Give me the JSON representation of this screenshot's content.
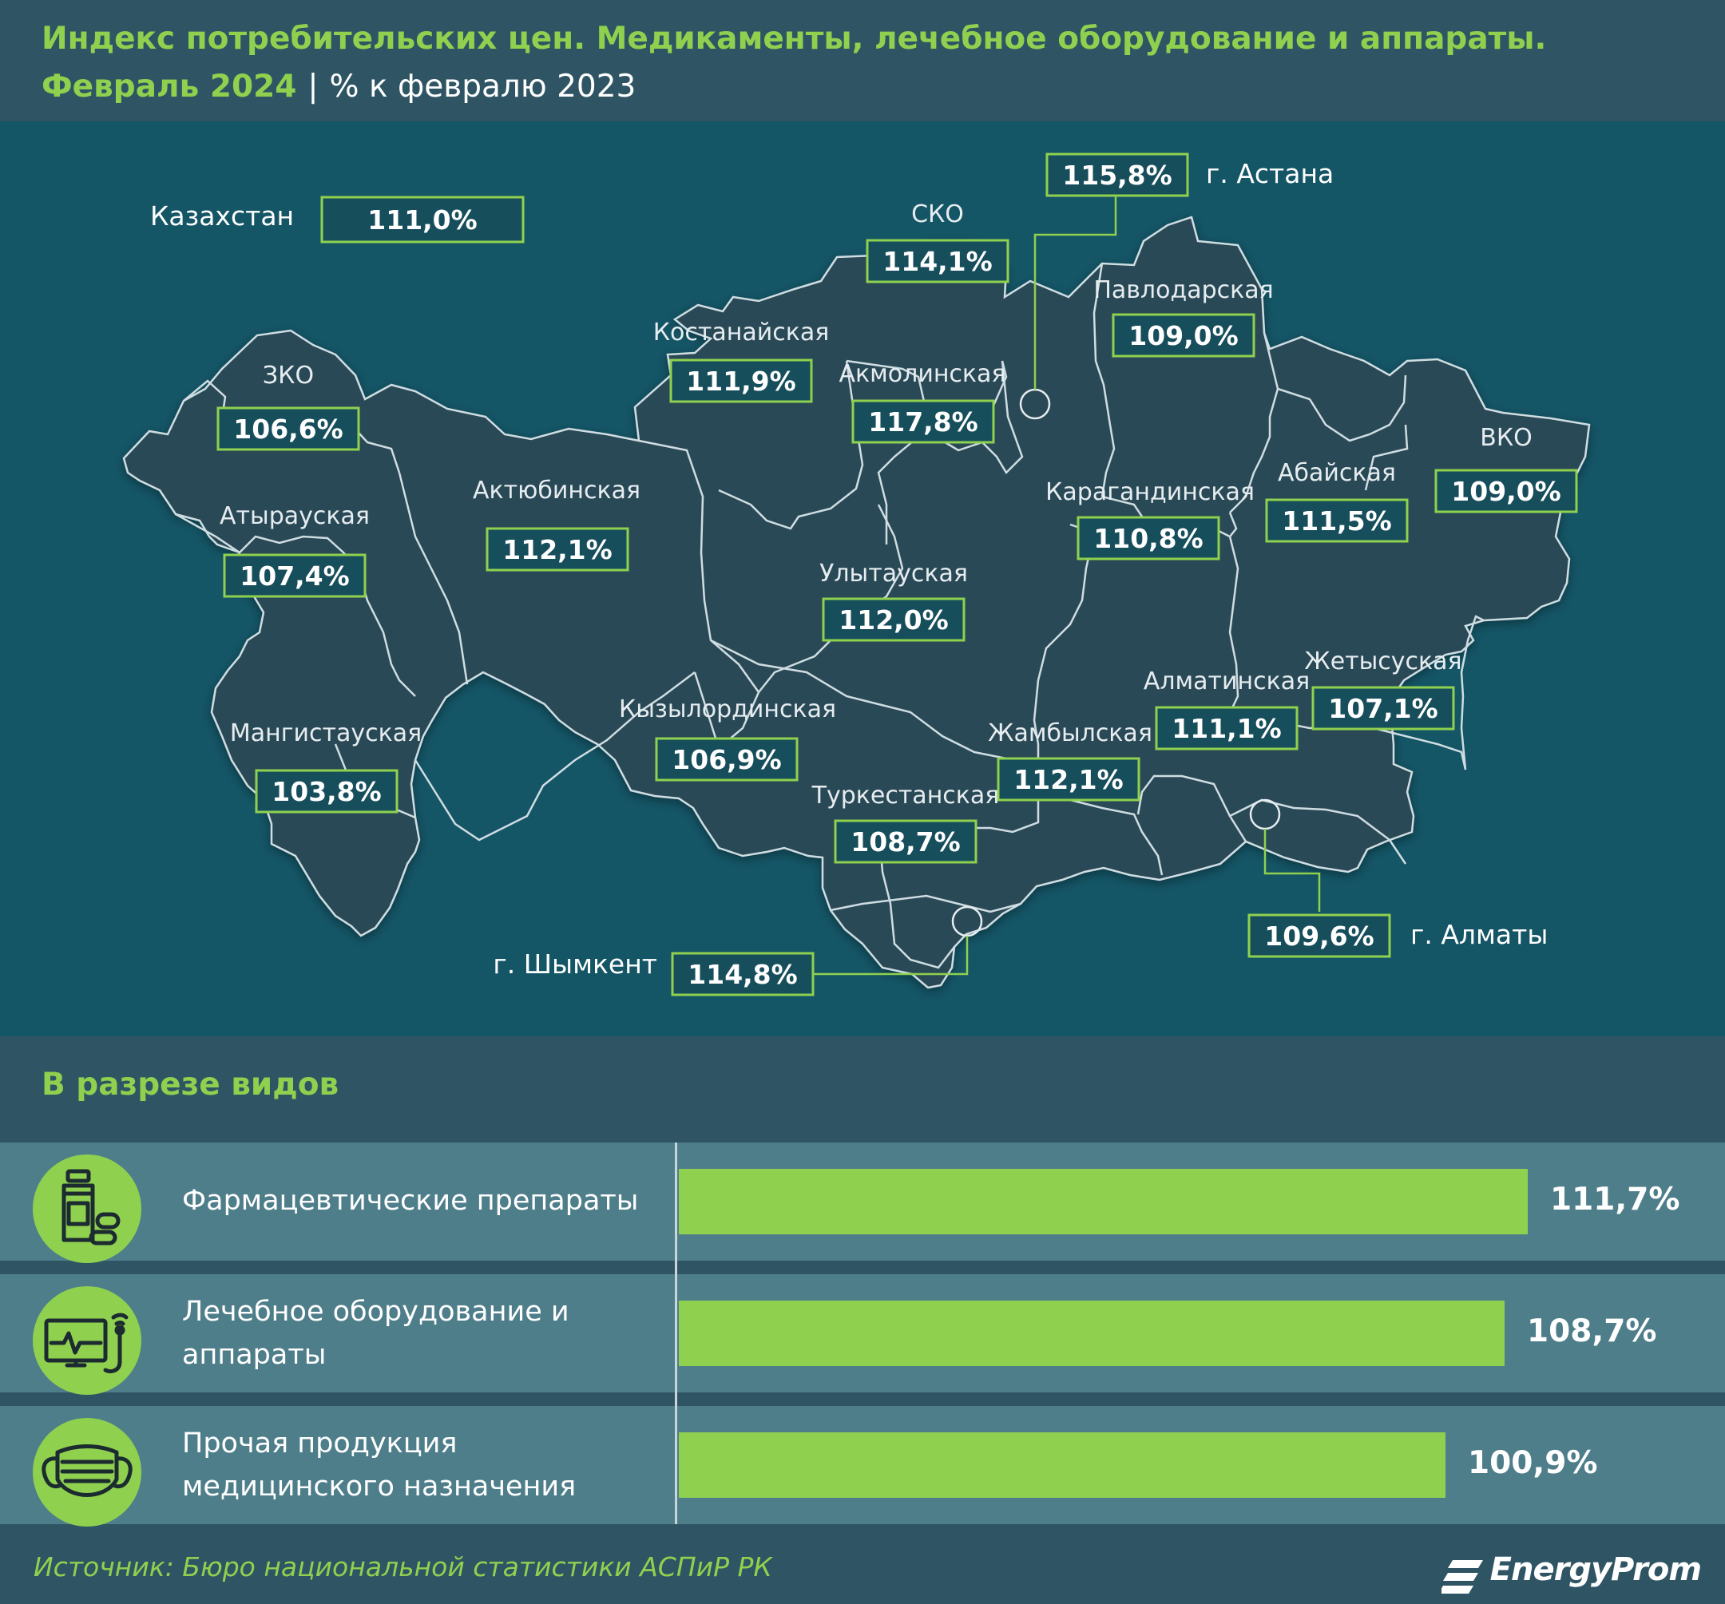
{
  "header": {
    "title": "Индекс потребительских цен. Медикаменты, лечебное оборудование и аппараты.",
    "period": "Февраль 2024",
    "separator": "|",
    "unit": "% к февралю 2023"
  },
  "map": {
    "national": {
      "label": "Казахстан",
      "value": "111,0%"
    },
    "regions": [
      {
        "name": "ЗКО",
        "value": "106,6%"
      },
      {
        "name": "Атырауская",
        "value": "107,4%"
      },
      {
        "name": "Мангистауская",
        "value": "103,8%"
      },
      {
        "name": "Актюбинская",
        "value": "112,1%"
      },
      {
        "name": "Костанайская",
        "value": "111,9%"
      },
      {
        "name": "СКО",
        "value": "114,1%"
      },
      {
        "name": "Акмолинская",
        "value": "117,8%"
      },
      {
        "name": "Павлодарская",
        "value": "109,0%"
      },
      {
        "name": "Абайская",
        "value": "111,5%"
      },
      {
        "name": "ВКО",
        "value": "109,0%"
      },
      {
        "name": "Карагандинская",
        "value": "110,8%"
      },
      {
        "name": "Улытауская",
        "value": "112,0%"
      },
      {
        "name": "Кызылординская",
        "value": "106,9%"
      },
      {
        "name": "Туркестанская",
        "value": "108,7%"
      },
      {
        "name": "Жамбылская",
        "value": "112,1%"
      },
      {
        "name": "Алматинская",
        "value": "111,1%"
      },
      {
        "name": "Жетысуская",
        "value": "107,1%"
      }
    ],
    "cities": [
      {
        "name": "г. Астана",
        "value": "115,8%"
      },
      {
        "name": "г. Алматы",
        "value": "109,6%"
      },
      {
        "name": "г. Шымкент",
        "value": "114,8%"
      }
    ]
  },
  "breakdown": {
    "title": "В разрезе видов"
  },
  "chart_data": {
    "type": "bar",
    "orientation": "horizontal",
    "categories": [
      "Фармацевтические препараты",
      "Лечебное оборудование и аппараты",
      "Прочая продукция медицинского назначения"
    ],
    "values": [
      111.7,
      108.7,
      100.9
    ],
    "value_labels": [
      "111,7%",
      "108,7%",
      "100,9%"
    ],
    "icons": [
      "pills-bottle-icon",
      "medical-monitor-icon",
      "face-mask-icon"
    ],
    "title": "В разрезе видов",
    "xlim": [
      0,
      111.7
    ],
    "colors": {
      "bar": "#8fd14f"
    }
  },
  "footer": {
    "source": "Источник: Бюро национальной статистики АСПиР РК",
    "logo": "EnergyProm"
  },
  "colors": {
    "accent_green": "#8fd14f",
    "map_background": "#145566",
    "region_fill": "#2a4a56",
    "panel": "#2f5564",
    "row": "#4f7e8b"
  }
}
